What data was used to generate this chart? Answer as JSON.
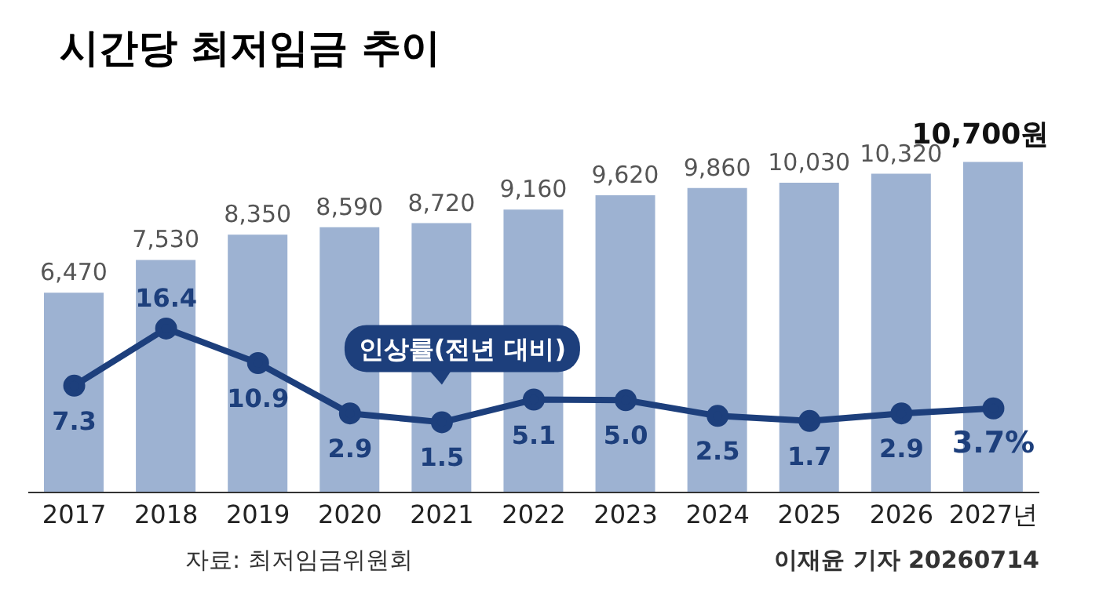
{
  "chart_data": {
    "type": "bar",
    "title": "시간당 최저임금 추이",
    "categories": [
      "2017",
      "2018",
      "2019",
      "2020",
      "2021",
      "2022",
      "2023",
      "2024",
      "2025",
      "2026",
      "2027년"
    ],
    "series": [
      {
        "color": "#9db2d2",
        "values": [
          6470,
          7530,
          8350,
          8590,
          8720,
          9160,
          9620,
          9860,
          10030,
          10320,
          10700
        ],
        "value_labels": [
          "6,470",
          "7,530",
          "8,350",
          "8,590",
          "8,720",
          "9,160",
          "9,620",
          "9,860",
          "10,030",
          "10,320",
          "10,700원"
        ]
      },
      {
        "type": "line",
        "name": "인상률(전년 대비)",
        "color": "#1d3f7c",
        "axis": "y2",
        "marker": "circle",
        "values": [
          7.3,
          16.4,
          10.9,
          2.9,
          1.5,
          5.1,
          5.0,
          2.5,
          1.7,
          2.9,
          3.7
        ],
        "value_labels": [
          "7.3",
          "16.4",
          "10.9",
          "2.9",
          "1.5",
          "5.1",
          "5.0",
          "2.5",
          "1.7",
          "2.9",
          "3.7%"
        ]
      }
    ],
    "grid": false,
    "legend": false,
    "tick_labels": "x",
    "annotations": [
      "자료: 최저임금위원회",
      "이재윤 기자 20260714"
    ]
  }
}
